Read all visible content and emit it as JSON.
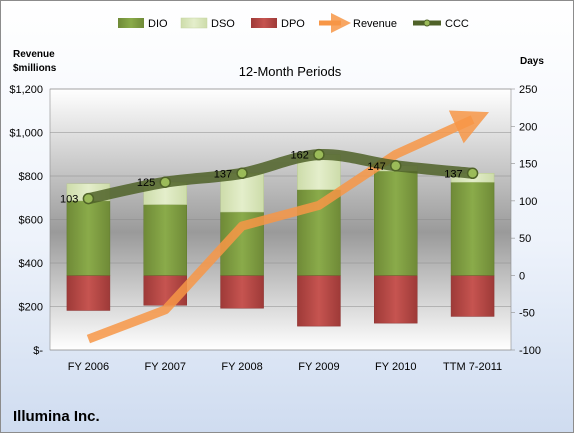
{
  "chart_data": {
    "type": "bar",
    "title": "12-Month Periods",
    "company": "Illumina Inc.",
    "categories": [
      "FY 2006",
      "FY 2007",
      "FY 2008",
      "FY 2009",
      "FY 2010",
      "TTM 7-2011"
    ],
    "y_left_title_line1": "Revenue",
    "y_left_title_line2": "$millions",
    "y_left_range": [
      0,
      1200
    ],
    "y_left_ticks": [
      "$-",
      "$200",
      "$400",
      "$600",
      "$800",
      "$1,000",
      "$1,200"
    ],
    "y_right_title": "Days",
    "y_right_range": [
      -100,
      250
    ],
    "y_right_ticks": [
      "-100",
      "-50",
      "0",
      "50",
      "100",
      "150",
      "200",
      "250"
    ],
    "legend_position": "top",
    "grid": true,
    "series": [
      {
        "name": "DIO",
        "axis": "days",
        "values": [
          100,
          95,
          85,
          115,
          140,
          125
        ],
        "color": "#76933c"
      },
      {
        "name": "DSO",
        "axis": "days",
        "values": [
          23,
          30,
          52,
          47,
          7,
          12
        ],
        "color": "#d7e4bc"
      },
      {
        "name": "DPO",
        "axis": "days",
        "values": [
          -47,
          -40,
          -44,
          -68,
          -64,
          -55
        ],
        "color": "#c0504d"
      },
      {
        "name": "Revenue",
        "axis": "revenue",
        "values": [
          50,
          185,
          570,
          665,
          900,
          1060
        ],
        "color": "#f79646"
      },
      {
        "name": "CCC",
        "axis": "days",
        "values": [
          103,
          125,
          137,
          162,
          147,
          137
        ],
        "color": "#4f6228"
      }
    ],
    "ccc_labels": [
      "103",
      "125",
      "137",
      "162",
      "147",
      "137"
    ]
  }
}
